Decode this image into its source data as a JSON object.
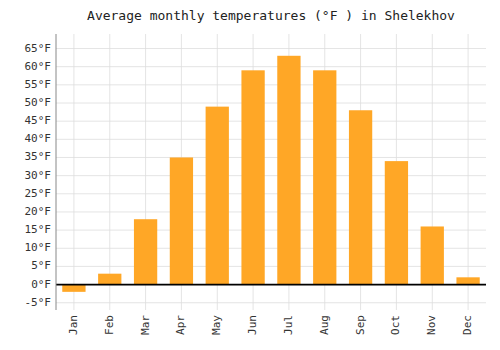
{
  "chart_data": {
    "type": "bar",
    "title": "Average monthly temperatures (°F ) in Shelekhov",
    "categories": [
      "Jan",
      "Feb",
      "Mar",
      "Apr",
      "May",
      "Jun",
      "Jul",
      "Aug",
      "Sep",
      "Oct",
      "Nov",
      "Dec"
    ],
    "values": [
      -2,
      3,
      18,
      35,
      49,
      59,
      63,
      59,
      48,
      34,
      16,
      2
    ],
    "color": "#FFA726",
    "ylim": [
      -7,
      69
    ],
    "yticks": [
      {
        "value": -5,
        "label": "-5°F"
      },
      {
        "value": 0,
        "label": "0°F"
      },
      {
        "value": 5,
        "label": "5°F"
      },
      {
        "value": 10,
        "label": "10°F"
      },
      {
        "value": 15,
        "label": "15°F"
      },
      {
        "value": 20,
        "label": "20°F"
      },
      {
        "value": 25,
        "label": "25°F"
      },
      {
        "value": 30,
        "label": "30°F"
      },
      {
        "value": 35,
        "label": "35°F"
      },
      {
        "value": 40,
        "label": "40°F"
      },
      {
        "value": 45,
        "label": "45°F"
      },
      {
        "value": 50,
        "label": "50°F"
      },
      {
        "value": 55,
        "label": "55°F"
      },
      {
        "value": 60,
        "label": "60°F"
      },
      {
        "value": 65,
        "label": "65°F"
      }
    ],
    "grid": true
  }
}
